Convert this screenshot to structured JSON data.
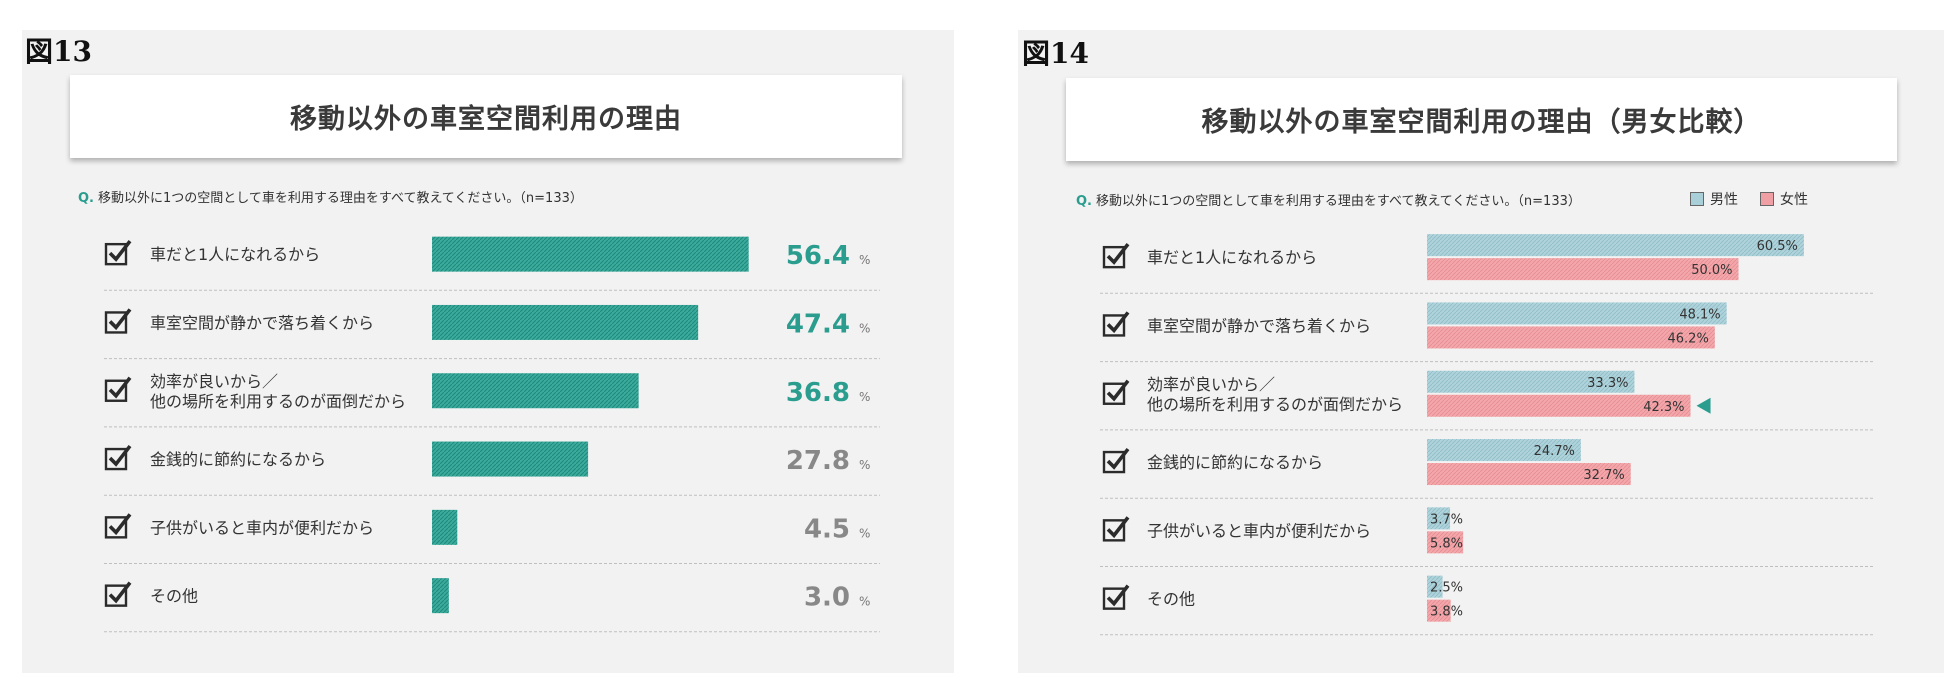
{
  "colors": {
    "teal": "#2a9d8f",
    "teal_bar": "#35a99a",
    "gray_value": "#888888",
    "male": "#a9cfd8",
    "female": "#f0a0a5",
    "panel_bg": "#f2f2f2"
  },
  "icons": {
    "row_icon": "checkbox-checked-icon",
    "marker_icon": "triangle-left-icon"
  },
  "fig13": {
    "label": "図13",
    "title": "移動以外の車室空間利用の理由",
    "question_prefix": "Q.",
    "question": "移動以外に1つの空間として車を利用する理由をすべて教えてください。（n=133）",
    "unit": "%"
  },
  "fig14": {
    "label": "図14",
    "title": "移動以外の車室空間利用の理由（男女比較）",
    "question_prefix": "Q.",
    "question": "移動以外に1つの空間として車を利用する理由をすべて教えてください。（n=133）",
    "legend": [
      "男性",
      "女性"
    ]
  },
  "chart_data": [
    {
      "type": "bar",
      "orientation": "horizontal",
      "title": "移動以外の車室空間利用の理由",
      "categories": [
        "車だと1人になれるから",
        "車室空間が静かで落ち着くから",
        "効率が良いから／\n他の場所を利用するのが面倒だから",
        "金銭的に節約になるから",
        "子供がいると車内が便利だから",
        "その他"
      ],
      "values": [
        56.4,
        47.4,
        36.8,
        27.8,
        4.5,
        3.0
      ],
      "value_labels": [
        "56.4",
        "47.4",
        "36.8",
        "27.8",
        "4.5",
        "3.0"
      ],
      "unit": "%",
      "highlighted_top": 3
    },
    {
      "type": "bar",
      "orientation": "horizontal",
      "title": "移動以外の車室空間利用の理由（男女比較）",
      "categories": [
        "車だと1人になれるから",
        "車室空間が静かで落ち着くから",
        "効率が良いから／\n他の場所を利用するのが面倒だから",
        "金銭的に節約になるから",
        "子供がいると車内が便利だから",
        "その他"
      ],
      "series": [
        {
          "name": "男性",
          "values": [
            60.5,
            48.1,
            33.3,
            24.7,
            3.7,
            2.5
          ],
          "labels": [
            "60.5%",
            "48.1%",
            "33.3%",
            "24.7%",
            "3.7%",
            "2.5%"
          ]
        },
        {
          "name": "女性",
          "values": [
            50.0,
            46.2,
            42.3,
            32.7,
            5.8,
            3.8
          ],
          "labels": [
            "50.0%",
            "46.2%",
            "42.3%",
            "32.7%",
            "5.8%",
            "3.8%"
          ]
        }
      ],
      "legend_position": "top-right",
      "marked_category_index": 2
    }
  ]
}
